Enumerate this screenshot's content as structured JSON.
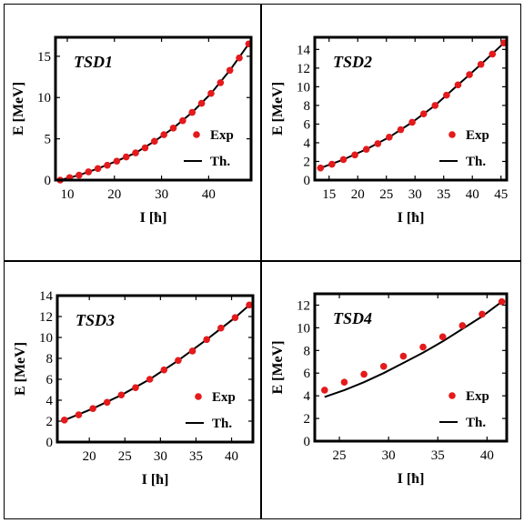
{
  "chart_data": [
    {
      "type": "scatter",
      "title": "TSD1",
      "xlabel": "I [ħ]",
      "ylabel": "E [MeV]",
      "xlim": [
        7.5,
        49
      ],
      "ylim": [
        0,
        17.3
      ],
      "xticks": [
        10,
        20,
        30,
        40
      ],
      "yticks": [
        0,
        5,
        10,
        15
      ],
      "legend": [
        "Exp",
        "Th."
      ],
      "legend_position": "bottom-right",
      "series": [
        {
          "name": "Exp",
          "style": "points",
          "color": "#e41a1c",
          "x": [
            8.5,
            10.5,
            12.5,
            14.5,
            16.5,
            18.5,
            20.5,
            22.5,
            24.5,
            26.5,
            28.5,
            30.5,
            32.5,
            34.5,
            36.5,
            38.5,
            40.5,
            42.5,
            44.5,
            46.5,
            48.5
          ],
          "y": [
            0.0,
            0.3,
            0.6,
            1.0,
            1.4,
            1.8,
            2.3,
            2.8,
            3.3,
            3.9,
            4.7,
            5.5,
            6.3,
            7.2,
            8.2,
            9.3,
            10.5,
            11.8,
            13.3,
            14.8,
            16.5
          ]
        },
        {
          "name": "Th.",
          "style": "line",
          "color": "#000000",
          "x": [
            8.5,
            12.5,
            16.5,
            20.5,
            24.5,
            28.5,
            32.5,
            36.5,
            40.5,
            44.5,
            48.5
          ],
          "y": [
            0.0,
            0.6,
            1.4,
            2.3,
            3.3,
            4.7,
            6.3,
            8.2,
            10.5,
            13.3,
            16.5
          ]
        }
      ]
    },
    {
      "type": "scatter",
      "title": "TSD2",
      "xlabel": "I [ħ]",
      "ylabel": "E [MeV]",
      "xlim": [
        12.5,
        46
      ],
      "ylim": [
        0,
        15.3
      ],
      "xticks": [
        15,
        20,
        25,
        30,
        35,
        40,
        45
      ],
      "yticks": [
        0,
        2,
        4,
        6,
        8,
        10,
        12,
        14
      ],
      "legend": [
        "Exp",
        "Th."
      ],
      "legend_position": "bottom-right",
      "series": [
        {
          "name": "Exp",
          "style": "points",
          "color": "#e41a1c",
          "x": [
            13.5,
            15.5,
            17.5,
            19.5,
            21.5,
            23.5,
            25.5,
            27.5,
            29.5,
            31.5,
            33.5,
            35.5,
            37.5,
            39.5,
            41.5,
            43.5,
            45.5
          ],
          "y": [
            1.3,
            1.7,
            2.2,
            2.7,
            3.3,
            3.9,
            4.6,
            5.4,
            6.2,
            7.1,
            8.0,
            9.1,
            10.2,
            11.3,
            12.4,
            13.5,
            14.7
          ]
        },
        {
          "name": "Th.",
          "style": "line",
          "color": "#000000",
          "x": [
            13.5,
            17.5,
            21.5,
            25.5,
            29.5,
            33.5,
            37.5,
            41.5,
            45.5
          ],
          "y": [
            1.3,
            2.2,
            3.3,
            4.6,
            6.2,
            8.0,
            10.2,
            12.4,
            14.7
          ]
        }
      ]
    },
    {
      "type": "scatter",
      "title": "TSD3",
      "xlabel": "I [ħ]",
      "ylabel": "E [MeV]",
      "xlim": [
        15.5,
        43
      ],
      "ylim": [
        0,
        14
      ],
      "xticks": [
        20,
        25,
        30,
        35,
        40
      ],
      "yticks": [
        0,
        2,
        4,
        6,
        8,
        10,
        12,
        14
      ],
      "legend": [
        "Exp",
        "Th."
      ],
      "legend_position": "bottom-right",
      "series": [
        {
          "name": "Exp",
          "style": "points",
          "color": "#e41a1c",
          "x": [
            16.5,
            18.5,
            20.5,
            22.5,
            24.5,
            26.5,
            28.5,
            30.5,
            32.5,
            34.5,
            36.5,
            38.5,
            40.5,
            42.5
          ],
          "y": [
            2.1,
            2.6,
            3.2,
            3.8,
            4.5,
            5.2,
            6.0,
            6.9,
            7.8,
            8.7,
            9.8,
            10.9,
            11.9,
            13.1
          ]
        },
        {
          "name": "Th.",
          "style": "line",
          "color": "#000000",
          "x": [
            16.5,
            20.5,
            24.5,
            28.5,
            32.5,
            36.5,
            40.5,
            42.5
          ],
          "y": [
            2.1,
            3.2,
            4.5,
            6.0,
            7.8,
            9.8,
            11.9,
            13.1
          ]
        }
      ]
    },
    {
      "type": "scatter",
      "title": "TSD4",
      "xlabel": "I [ħ]",
      "ylabel": "E [MeV]",
      "xlim": [
        22.5,
        42
      ],
      "ylim": [
        0,
        13
      ],
      "xticks": [
        25,
        30,
        35,
        40
      ],
      "yticks": [
        0,
        2,
        4,
        6,
        8,
        10,
        12
      ],
      "legend": [
        "Exp",
        "Th."
      ],
      "legend_position": "bottom-right",
      "series": [
        {
          "name": "Exp",
          "style": "points",
          "color": "#e41a1c",
          "x": [
            23.5,
            25.5,
            27.5,
            29.5,
            31.5,
            33.5,
            35.5,
            37.5,
            39.5,
            41.5
          ],
          "y": [
            4.5,
            5.2,
            5.9,
            6.6,
            7.5,
            8.3,
            9.2,
            10.2,
            11.2,
            12.3
          ]
        },
        {
          "name": "Th.",
          "style": "line",
          "color": "#000000",
          "x": [
            23.5,
            25.5,
            27.5,
            29.5,
            31.5,
            33.5,
            35.5,
            37.5,
            39.5,
            41.5
          ],
          "y": [
            3.9,
            4.5,
            5.2,
            6.0,
            6.9,
            7.8,
            8.8,
            9.9,
            11.0,
            12.3
          ]
        }
      ]
    }
  ]
}
